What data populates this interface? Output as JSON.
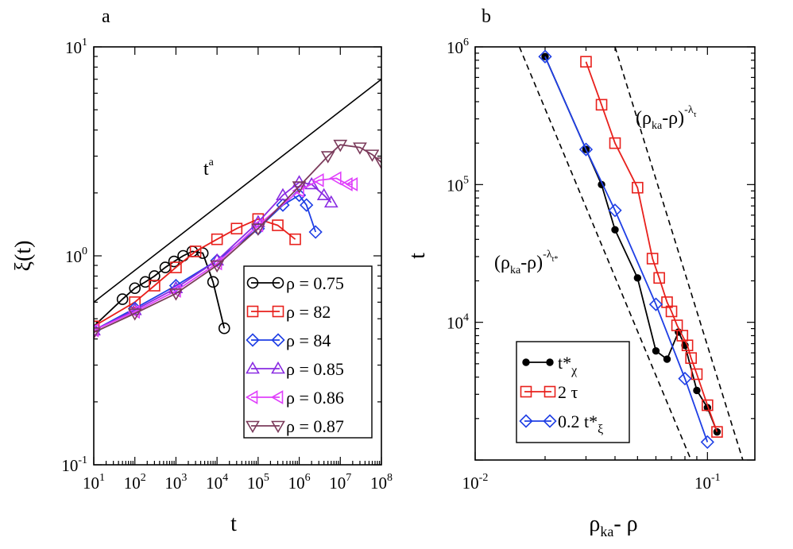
{
  "chart_data": [
    {
      "panel": "a",
      "type": "line",
      "xscale": "log",
      "yscale": "log",
      "xlabel": "t",
      "ylabel": "ξ(t)",
      "xlim": [
        10,
        100000000
      ],
      "ylim": [
        0.1,
        10
      ],
      "x_ticks": [
        {
          "base": "10",
          "exp": "1"
        },
        {
          "base": "10",
          "exp": "2"
        },
        {
          "base": "10",
          "exp": "3"
        },
        {
          "base": "10",
          "exp": "4"
        },
        {
          "base": "10",
          "exp": "5"
        },
        {
          "base": "10",
          "exp": "6"
        },
        {
          "base": "10",
          "exp": "7"
        },
        {
          "base": "10",
          "exp": "8"
        }
      ],
      "y_ticks": [
        {
          "base": "10",
          "exp": "-1",
          "value": 0.1
        },
        {
          "base": "10",
          "exp": "0",
          "value": 1
        },
        {
          "base": "10",
          "exp": "1",
          "value": 10
        }
      ],
      "reference_line": {
        "label_base": "t",
        "label_exp": "a",
        "x": [
          10,
          100000000
        ],
        "y": [
          0.6,
          7.0
        ]
      },
      "legend_position": "bottom-right",
      "series": [
        {
          "name": "ρ = 0.75",
          "color": "#000000",
          "marker": "circle",
          "x": [
            10,
            50,
            100,
            180,
            300,
            550,
            900,
            1500,
            2500,
            4500,
            8000,
            15000
          ],
          "y": [
            0.46,
            0.62,
            0.7,
            0.75,
            0.8,
            0.88,
            0.94,
            1.0,
            1.05,
            1.03,
            0.75,
            0.45
          ]
        },
        {
          "name": "ρ = 82",
          "color": "#e8201c",
          "marker": "square",
          "x": [
            10,
            100,
            300,
            1000,
            3000,
            10000,
            30000,
            100000,
            300000,
            800000
          ],
          "y": [
            0.46,
            0.6,
            0.72,
            0.88,
            1.05,
            1.2,
            1.35,
            1.5,
            1.4,
            1.2
          ]
        },
        {
          "name": "ρ = 84",
          "color": "#1f3fe5",
          "marker": "diamond",
          "x": [
            10,
            100,
            1000,
            10000,
            100000,
            400000,
            1000000,
            1500000,
            2500000
          ],
          "y": [
            0.44,
            0.56,
            0.72,
            0.95,
            1.35,
            1.75,
            1.95,
            1.75,
            1.3
          ]
        },
        {
          "name": "ρ = 0.85",
          "color": "#8a2be2",
          "marker": "triangle-up",
          "x": [
            10,
            100,
            1000,
            10000,
            100000,
            400000,
            1000000,
            2000000,
            4000000,
            6000000
          ],
          "y": [
            0.44,
            0.55,
            0.7,
            0.95,
            1.45,
            1.95,
            2.25,
            2.2,
            1.95,
            1.8
          ]
        },
        {
          "name": "ρ = 0.86",
          "color": "#e040fb",
          "marker": "triangle-left",
          "x": [
            10,
            100,
            1000,
            10000,
            100000,
            1000000,
            3000000,
            8000000,
            15000000,
            20000000
          ],
          "y": [
            0.44,
            0.54,
            0.68,
            0.92,
            1.4,
            2.05,
            2.3,
            2.35,
            2.2,
            2.2
          ]
        },
        {
          "name": "ρ = 0.87",
          "color": "#7b3b5b",
          "marker": "triangle-down",
          "x": [
            10,
            100,
            1000,
            10000,
            100000,
            1000000,
            5000000,
            10000000,
            30000000,
            60000000,
            100000000
          ],
          "y": [
            0.43,
            0.53,
            0.66,
            0.9,
            1.35,
            2.15,
            3.0,
            3.4,
            3.3,
            3.05,
            2.8
          ]
        }
      ]
    },
    {
      "panel": "b",
      "type": "line",
      "xscale": "log",
      "yscale": "log",
      "xlabel": "ρ",
      "xlabel_sub": "ka",
      "xlabel_mid": "- ",
      "ylabel": "t",
      "xlim": [
        0.01,
        0.16
      ],
      "ylim": [
        1000,
        1000000
      ],
      "x_ticks": [
        {
          "base": "10",
          "exp": "-2",
          "value": 0.01
        },
        {
          "base": "10",
          "exp": "-1",
          "value": 0.1
        }
      ],
      "y_ticks": [
        {
          "base": "10",
          "exp": "4",
          "value": 10000
        },
        {
          "base": "10",
          "exp": "5",
          "value": 100000
        },
        {
          "base": "10",
          "exp": "6",
          "value": 1000000
        }
      ],
      "annotations": [
        {
          "text": "(ρ",
          "sub": "ka",
          "mid": "-ρ)",
          "sup": "-λ",
          "supsub": "τ"
        },
        {
          "text": "(ρ",
          "sub": "ka",
          "mid": "-ρ)",
          "sup": "-λ",
          "supsub": "t*"
        }
      ],
      "dashed_lines": [
        {
          "x": [
            0.04,
            0.142
          ],
          "y": [
            1000000,
            1000
          ]
        },
        {
          "x": [
            0.0155,
            0.085
          ],
          "y": [
            1000000,
            1000
          ]
        }
      ],
      "legend_position": "bottom-left",
      "series": [
        {
          "name": "t*",
          "name_sub": "χ",
          "color": "#000000",
          "marker": "dot",
          "x": [
            0.02,
            0.03,
            0.035,
            0.04,
            0.05,
            0.06,
            0.067,
            0.075,
            0.08,
            0.09,
            0.1,
            0.11
          ],
          "y": [
            850000,
            180000,
            100000,
            47000,
            21000,
            6200,
            5400,
            8500,
            6800,
            3200,
            2400,
            1600
          ]
        },
        {
          "name": "2 τ",
          "name_sub": "",
          "color": "#e8201c",
          "marker": "square",
          "x": [
            0.03,
            0.035,
            0.04,
            0.05,
            0.058,
            0.062,
            0.067,
            0.07,
            0.074,
            0.078,
            0.082,
            0.085,
            0.09,
            0.1,
            0.11
          ],
          "y": [
            780000,
            380000,
            200000,
            95000,
            29000,
            21000,
            14000,
            12000,
            9500,
            8000,
            6800,
            5500,
            4200,
            2500,
            1600
          ]
        },
        {
          "name": "0.2 t*",
          "name_sub": "ξ",
          "color": "#1f3fe5",
          "marker": "diamond",
          "x": [
            0.02,
            0.03,
            0.04,
            0.06,
            0.08,
            0.1
          ],
          "y": [
            850000,
            180000,
            65000,
            13500,
            3900,
            1350
          ]
        }
      ]
    }
  ],
  "panel_labels": {
    "a": "a",
    "b": "b"
  }
}
